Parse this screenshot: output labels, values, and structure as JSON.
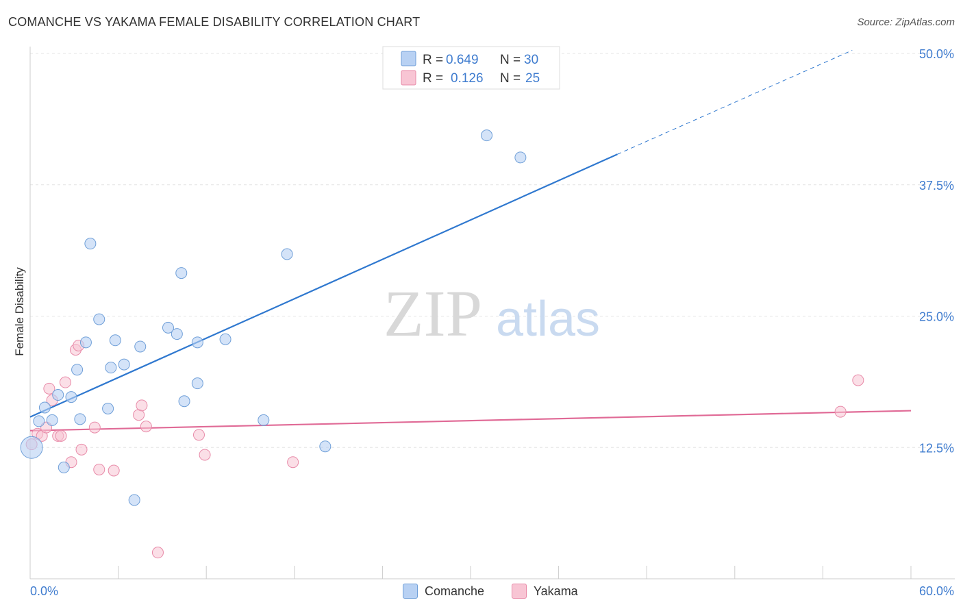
{
  "header": {
    "title": "COMANCHE VS YAKAMA FEMALE DISABILITY CORRELATION CHART",
    "source": "Source: ZipAtlas.com"
  },
  "watermark": {
    "zip": "ZIP",
    "atlas": "atlas"
  },
  "legend_top": [
    {
      "r_label": "R = ",
      "r_value": "0.649",
      "n_label": "N = ",
      "n_value": "30"
    },
    {
      "r_label": "R = ",
      "r_value": "0.126",
      "n_label": "N = ",
      "n_value": "25"
    }
  ],
  "legend_bottom": [
    {
      "label": "Comanche"
    },
    {
      "label": "Yakama"
    }
  ],
  "colors": {
    "comanche_fill": "#b8d1f3",
    "comanche_stroke": "#6f9fd8",
    "comanche_line": "#2f78cf",
    "yakama_fill": "#f8c5d4",
    "yakama_stroke": "#e88aa8",
    "yakama_line": "#e06a96",
    "axis_label": "#3f7ccf"
  },
  "chart_data": {
    "type": "scatter",
    "title": "COMANCHE VS YAKAMA FEMALE DISABILITY CORRELATION CHART",
    "xlabel": "",
    "ylabel": "Female Disability",
    "xlim": [
      0,
      60
    ],
    "ylim": [
      0,
      52
    ],
    "x_tick_labels": [
      "0.0%",
      "60.0%"
    ],
    "y_ticks": [
      12.5,
      25.0,
      37.5,
      50.0
    ],
    "y_tick_labels": [
      "12.5%",
      "25.0%",
      "37.5%",
      "50.0%"
    ],
    "grid": "horizontal dashed",
    "legend_placement": "top-center",
    "series": [
      {
        "name": "Comanche",
        "R": 0.649,
        "N": 30,
        "trend": {
          "x0": 0,
          "y0": 15.4,
          "x1": 40,
          "y1": 40.4,
          "dashed_to_x": 56,
          "dashed_to_y": 50.3
        },
        "points": [
          [
            0.1,
            12.5,
            16
          ],
          [
            0.6,
            15.0,
            8
          ],
          [
            1.0,
            16.3,
            8
          ],
          [
            1.5,
            15.1,
            8
          ],
          [
            1.9,
            17.5,
            8
          ],
          [
            2.3,
            10.6,
            8
          ],
          [
            2.8,
            17.3,
            8
          ],
          [
            3.2,
            19.9,
            8
          ],
          [
            3.4,
            15.2,
            8
          ],
          [
            3.8,
            22.5,
            8
          ],
          [
            4.1,
            31.9,
            8
          ],
          [
            4.7,
            24.7,
            8
          ],
          [
            5.3,
            16.2,
            8
          ],
          [
            5.5,
            20.1,
            8
          ],
          [
            5.8,
            22.7,
            8
          ],
          [
            6.4,
            20.4,
            8
          ],
          [
            7.1,
            7.5,
            8
          ],
          [
            7.5,
            22.1,
            8
          ],
          [
            9.4,
            23.9,
            8
          ],
          [
            10.0,
            23.3,
            8
          ],
          [
            10.3,
            29.1,
            8
          ],
          [
            10.5,
            16.9,
            8
          ],
          [
            11.4,
            22.5,
            8
          ],
          [
            11.4,
            18.6,
            8
          ],
          [
            13.3,
            22.8,
            8
          ],
          [
            15.9,
            15.1,
            8
          ],
          [
            17.5,
            30.9,
            8
          ],
          [
            20.1,
            12.6,
            8
          ],
          [
            31.1,
            42.2,
            8
          ],
          [
            33.4,
            40.1,
            8
          ]
        ]
      },
      {
        "name": "Yakama",
        "R": 0.126,
        "N": 25,
        "trend": {
          "x0": 0,
          "y0": 14.1,
          "x1": 60,
          "y1": 16.0
        },
        "points": [
          [
            0.1,
            12.8,
            8
          ],
          [
            0.5,
            13.8,
            8
          ],
          [
            0.8,
            13.6,
            8
          ],
          [
            1.1,
            14.4,
            8
          ],
          [
            1.3,
            18.1,
            8
          ],
          [
            1.5,
            17.0,
            8
          ],
          [
            1.9,
            13.6,
            8
          ],
          [
            2.1,
            13.6,
            8
          ],
          [
            2.4,
            18.7,
            8
          ],
          [
            2.8,
            11.1,
            8
          ],
          [
            3.1,
            21.8,
            8
          ],
          [
            3.3,
            22.2,
            8
          ],
          [
            3.5,
            12.3,
            8
          ],
          [
            4.4,
            14.4,
            8
          ],
          [
            4.7,
            10.4,
            8
          ],
          [
            5.7,
            10.3,
            8
          ],
          [
            7.4,
            15.6,
            8
          ],
          [
            7.6,
            16.5,
            8
          ],
          [
            7.9,
            14.5,
            8
          ],
          [
            8.7,
            2.5,
            8
          ],
          [
            11.5,
            13.7,
            8
          ],
          [
            11.9,
            11.8,
            8
          ],
          [
            17.9,
            11.1,
            8
          ],
          [
            55.2,
            15.9,
            8
          ],
          [
            56.4,
            18.9,
            8
          ]
        ]
      }
    ]
  }
}
